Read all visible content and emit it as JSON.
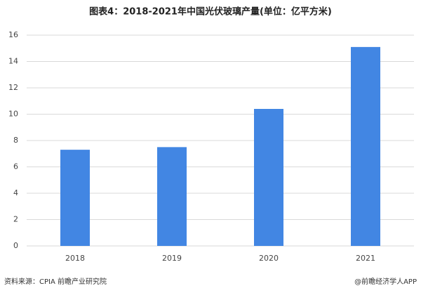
{
  "chart_data": {
    "type": "bar",
    "title": "图表4：2018-2021年中国光伏玻璃产量(单位：亿平方米)",
    "categories": [
      "2018",
      "2019",
      "2020",
      "2021"
    ],
    "values": [
      7.3,
      7.5,
      10.4,
      15.1
    ],
    "color": "#4286e3",
    "ylim": [
      0,
      16
    ],
    "yticks": [
      0,
      2,
      4,
      6,
      8,
      10,
      12,
      14,
      16
    ],
    "grid": true,
    "source": "资料来源：CPIA 前瞻产业研究院",
    "credit": "@前瞻经济学人APP"
  }
}
